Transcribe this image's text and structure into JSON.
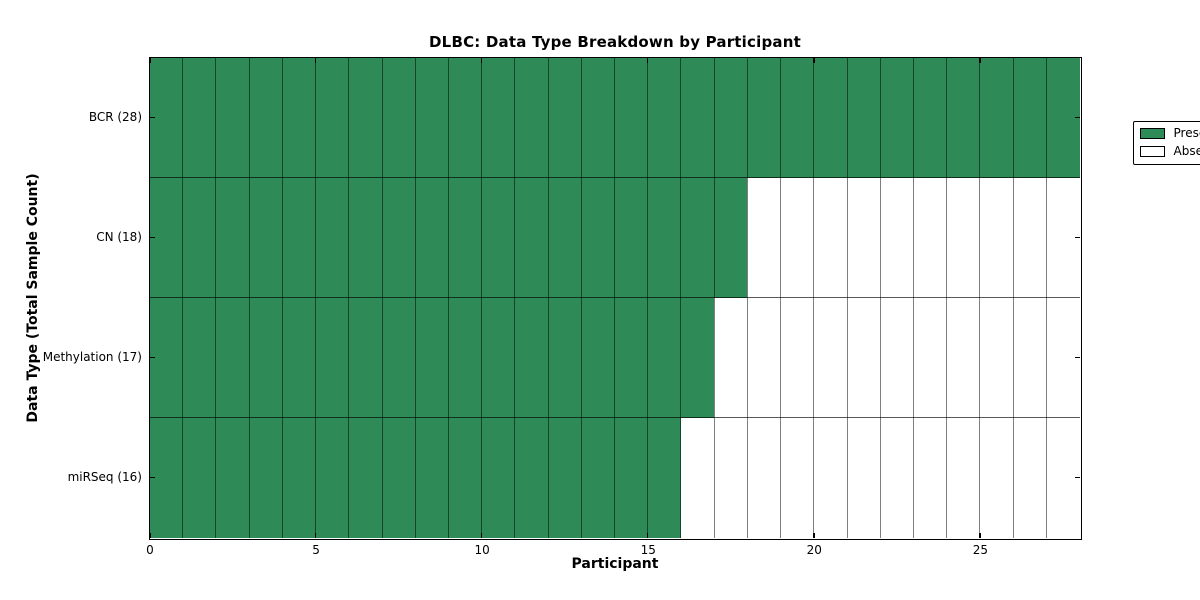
{
  "chart_data": {
    "type": "heatmap",
    "title": "DLBC: Data Type Breakdown by Participant",
    "xlabel": "Participant",
    "ylabel": "Data Type (Total Sample Count)",
    "xlim": [
      0,
      28
    ],
    "x_ticks": [
      0,
      5,
      10,
      15,
      20,
      25
    ],
    "participants": 28,
    "rows": [
      {
        "label": "BCR (28)",
        "data_type": "BCR",
        "total_samples": 28,
        "present": 28,
        "absent": 0
      },
      {
        "label": "CN (18)",
        "data_type": "CN",
        "total_samples": 18,
        "present": 18,
        "absent": 10
      },
      {
        "label": "Methylation (17)",
        "data_type": "Methylation",
        "total_samples": 17,
        "present": 17,
        "absent": 11
      },
      {
        "label": "miRSeq (16)",
        "data_type": "miRSeq",
        "total_samples": 16,
        "present": 16,
        "absent": 12
      }
    ],
    "legend": {
      "position": "upper right",
      "entries": [
        {
          "label": "Present",
          "color": "#2e8b57"
        },
        {
          "label": "Absent",
          "color": "#ffffff"
        }
      ]
    },
    "colors": {
      "present": "#2e8b57",
      "absent": "#ffffff",
      "grid_line": "rgba(0,0,0,0.5)",
      "row_line": "rgba(0,0,0,0.65)",
      "spine": "#000000"
    },
    "grid": true
  }
}
